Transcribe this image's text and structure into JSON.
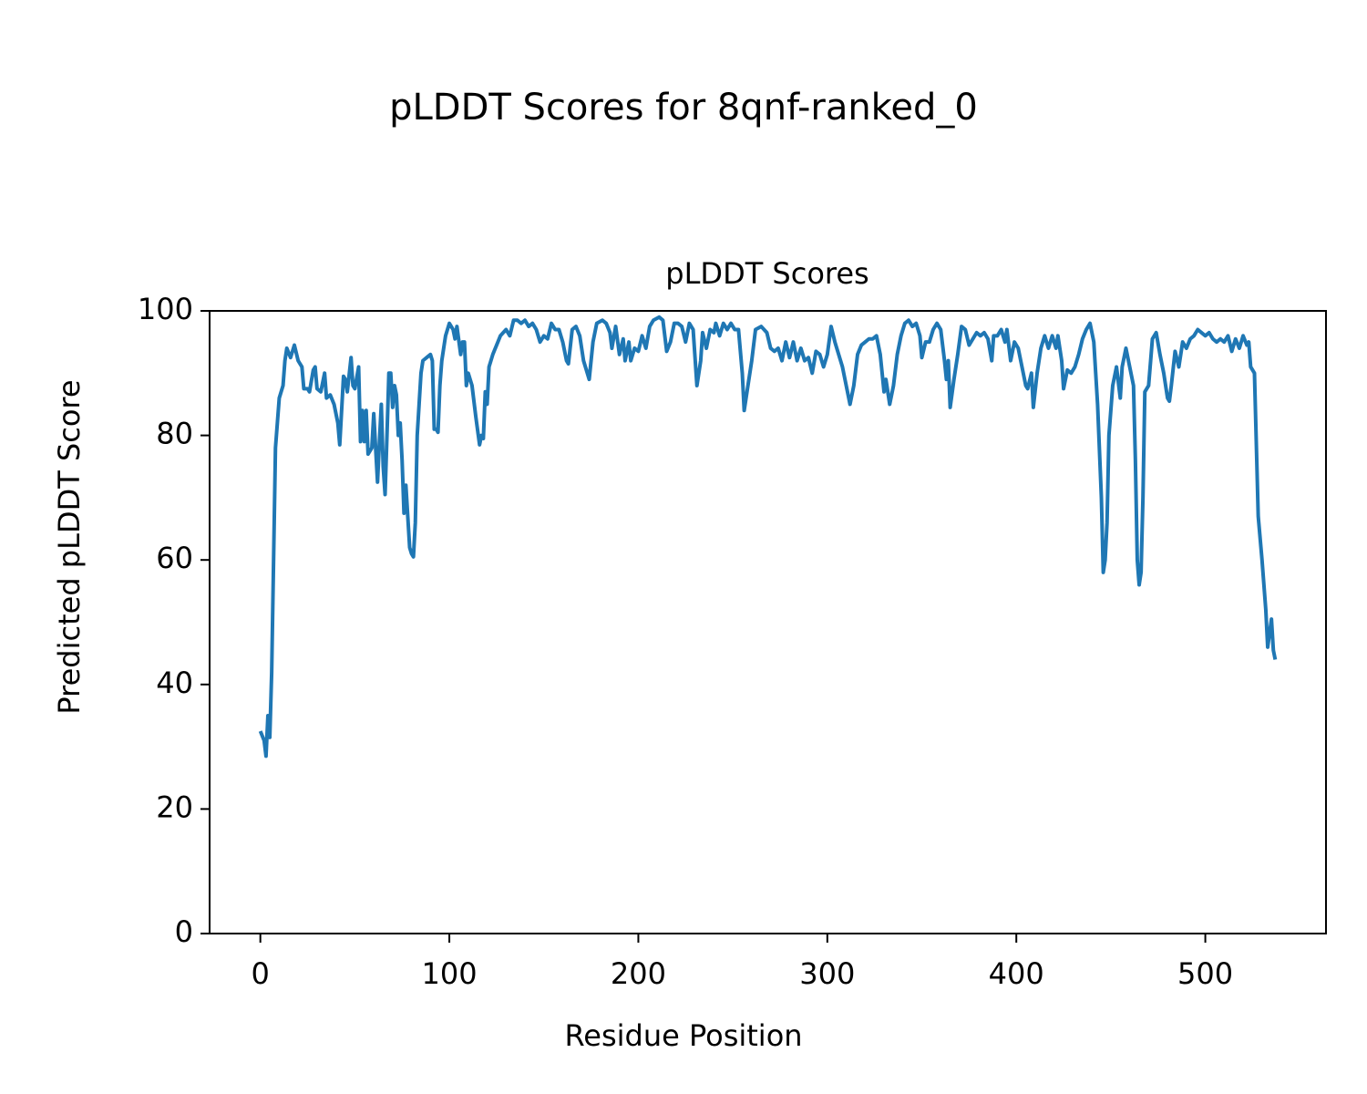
{
  "chart_data": {
    "type": "line",
    "title": "pLDDT Scores for 8qnf-ranked_0",
    "subtitle": "pLDDT Scores",
    "x_label": "Residue Position",
    "y_label": "Predicted pLDDT Score",
    "xlim": [
      -26.85,
      563.85
    ],
    "ylim": [
      0,
      100
    ],
    "xticks": [
      0,
      100,
      200,
      300,
      400,
      500
    ],
    "yticks": [
      0,
      20,
      40,
      60,
      80,
      100
    ],
    "grid": false,
    "x": [
      0,
      2,
      3,
      4,
      5,
      6,
      7,
      8,
      10,
      12,
      13,
      14,
      16,
      18,
      20,
      22,
      23,
      25,
      26,
      28,
      29,
      30,
      32,
      34,
      35,
      37,
      39,
      41,
      42,
      44,
      45,
      46,
      48,
      49,
      50,
      52,
      53,
      54,
      55,
      56,
      57,
      59,
      60,
      62,
      63,
      64,
      65,
      66,
      67,
      68,
      69,
      70,
      71,
      72,
      73,
      74,
      75,
      76,
      77,
      78,
      79,
      80,
      81,
      82,
      83,
      84,
      85,
      86,
      88,
      90,
      91,
      92,
      93,
      94,
      95,
      96,
      98,
      100,
      102,
      103,
      104,
      106,
      107,
      108,
      109,
      110,
      112,
      114,
      116,
      117,
      118,
      119,
      120,
      121,
      123,
      125,
      127,
      130,
      132,
      134,
      136,
      138,
      140,
      142,
      144,
      146,
      148,
      150,
      152,
      154,
      156,
      158,
      160,
      162,
      163,
      165,
      167,
      169,
      171,
      173,
      174,
      176,
      178,
      181,
      183,
      185,
      186,
      188,
      190,
      192,
      193,
      195,
      196,
      198,
      200,
      202,
      204,
      206,
      208,
      211,
      213,
      215,
      217,
      219,
      221,
      223,
      225,
      227,
      229,
      231,
      233,
      234,
      236,
      238,
      240,
      241,
      243,
      245,
      247,
      249,
      251,
      253,
      255,
      256,
      258,
      260,
      262,
      265,
      268,
      270,
      272,
      274,
      276,
      278,
      280,
      282,
      284,
      286,
      288,
      290,
      292,
      294,
      296,
      298,
      300,
      302,
      304,
      306,
      308,
      310,
      312,
      314,
      316,
      318,
      320,
      322,
      324,
      326,
      328,
      330,
      331,
      333,
      335,
      337,
      339,
      341,
      343,
      345,
      347,
      349,
      350,
      352,
      354,
      356,
      358,
      360,
      362,
      363,
      364,
      365,
      367,
      369,
      371,
      373,
      375,
      377,
      379,
      381,
      383,
      385,
      387,
      388,
      390,
      392,
      394,
      395,
      397,
      399,
      401,
      403,
      405,
      406,
      408,
      409,
      411,
      413,
      415,
      417,
      419,
      421,
      422,
      424,
      425,
      427,
      429,
      431,
      433,
      435,
      437,
      439,
      441,
      443,
      445,
      446,
      447,
      448,
      449,
      451,
      453,
      455,
      456,
      458,
      460,
      462,
      463,
      464,
      465,
      466,
      467,
      468,
      470,
      472,
      474,
      476,
      478,
      480,
      481,
      482,
      484,
      486,
      488,
      490,
      492,
      494,
      496,
      498,
      500,
      502,
      504,
      506,
      508,
      510,
      512,
      514,
      516,
      518,
      520,
      522,
      523,
      524,
      526,
      528,
      530,
      532,
      533,
      535,
      536,
      537
    ],
    "series": [
      {
        "name": "pLDDT",
        "color": "#1f77b4",
        "values": [
          32.5,
          31,
          28.5,
          35,
          31.5,
          42,
          60,
          78,
          86,
          88,
          92,
          94,
          92.5,
          94.5,
          92,
          91,
          87.5,
          87.5,
          87,
          90.5,
          91,
          87.5,
          87,
          90,
          86,
          86.5,
          85,
          82,
          78.5,
          89.5,
          89,
          87,
          92.5,
          88,
          87.5,
          91,
          79,
          84,
          79,
          84,
          77,
          78,
          83.5,
          72.5,
          79,
          85,
          75,
          70.5,
          80,
          90,
          90,
          84.5,
          88,
          86.5,
          80,
          82,
          76,
          67.5,
          72,
          67,
          62,
          61,
          60.5,
          66,
          80,
          85,
          90,
          92,
          92.5,
          93,
          92,
          81,
          81,
          80.5,
          88,
          92,
          96,
          98,
          97,
          95.5,
          97.5,
          93,
          95,
          95,
          88,
          90,
          88,
          83,
          78.5,
          80,
          79.5,
          87,
          85,
          91,
          93,
          94.5,
          96,
          97,
          96,
          98.5,
          98.5,
          98,
          98.5,
          97.5,
          98,
          97,
          95,
          96,
          95.5,
          98,
          97,
          97,
          95,
          92,
          91.5,
          97,
          97.5,
          96,
          92,
          90,
          89,
          95,
          98,
          98.5,
          98,
          96.5,
          94,
          97.5,
          93,
          95.5,
          92,
          95,
          92,
          94,
          93.5,
          96,
          94,
          97.5,
          98.5,
          99,
          98.5,
          93.5,
          95,
          98,
          98,
          97.5,
          95,
          98,
          97,
          88,
          92,
          96.5,
          94,
          97,
          96.5,
          98,
          96,
          98,
          97,
          98,
          97,
          97,
          90,
          84,
          88,
          92,
          97,
          97.5,
          96.5,
          94,
          93.5,
          94,
          92,
          95,
          92.5,
          95,
          92,
          94,
          92,
          92.5,
          90,
          93.5,
          93,
          91,
          93,
          97.5,
          95,
          93,
          91,
          88,
          85,
          88,
          93,
          94.5,
          95,
          95.5,
          95.5,
          96,
          93,
          87,
          89,
          85,
          88,
          93,
          96,
          98,
          98.5,
          97.5,
          98,
          96,
          92.5,
          95,
          95,
          97,
          98,
          97,
          92,
          89,
          92,
          84.5,
          89,
          93,
          97.5,
          97,
          94.5,
          95.5,
          96.5,
          96,
          96.5,
          95.5,
          92,
          96,
          96,
          97,
          95,
          97,
          92,
          95,
          94,
          91,
          88,
          87.5,
          90,
          84.5,
          90,
          94,
          96,
          94,
          96,
          94,
          96,
          92,
          87.5,
          90.5,
          90,
          91,
          93,
          95.5,
          97,
          98,
          95,
          85,
          70,
          58,
          60,
          66,
          80,
          88,
          91,
          86,
          91,
          94,
          91,
          88,
          76,
          60,
          56,
          58,
          70,
          87,
          88,
          95.5,
          96.5,
          93,
          90,
          86,
          85.5,
          88,
          93.5,
          91,
          95,
          94,
          95.5,
          96,
          97,
          96.5,
          96,
          96.5,
          95.5,
          95,
          95.5,
          95,
          96,
          93.5,
          95.5,
          94,
          96,
          94.5,
          95,
          91,
          90,
          67,
          60,
          52,
          46,
          50.5,
          45.5,
          44
        ]
      }
    ]
  }
}
